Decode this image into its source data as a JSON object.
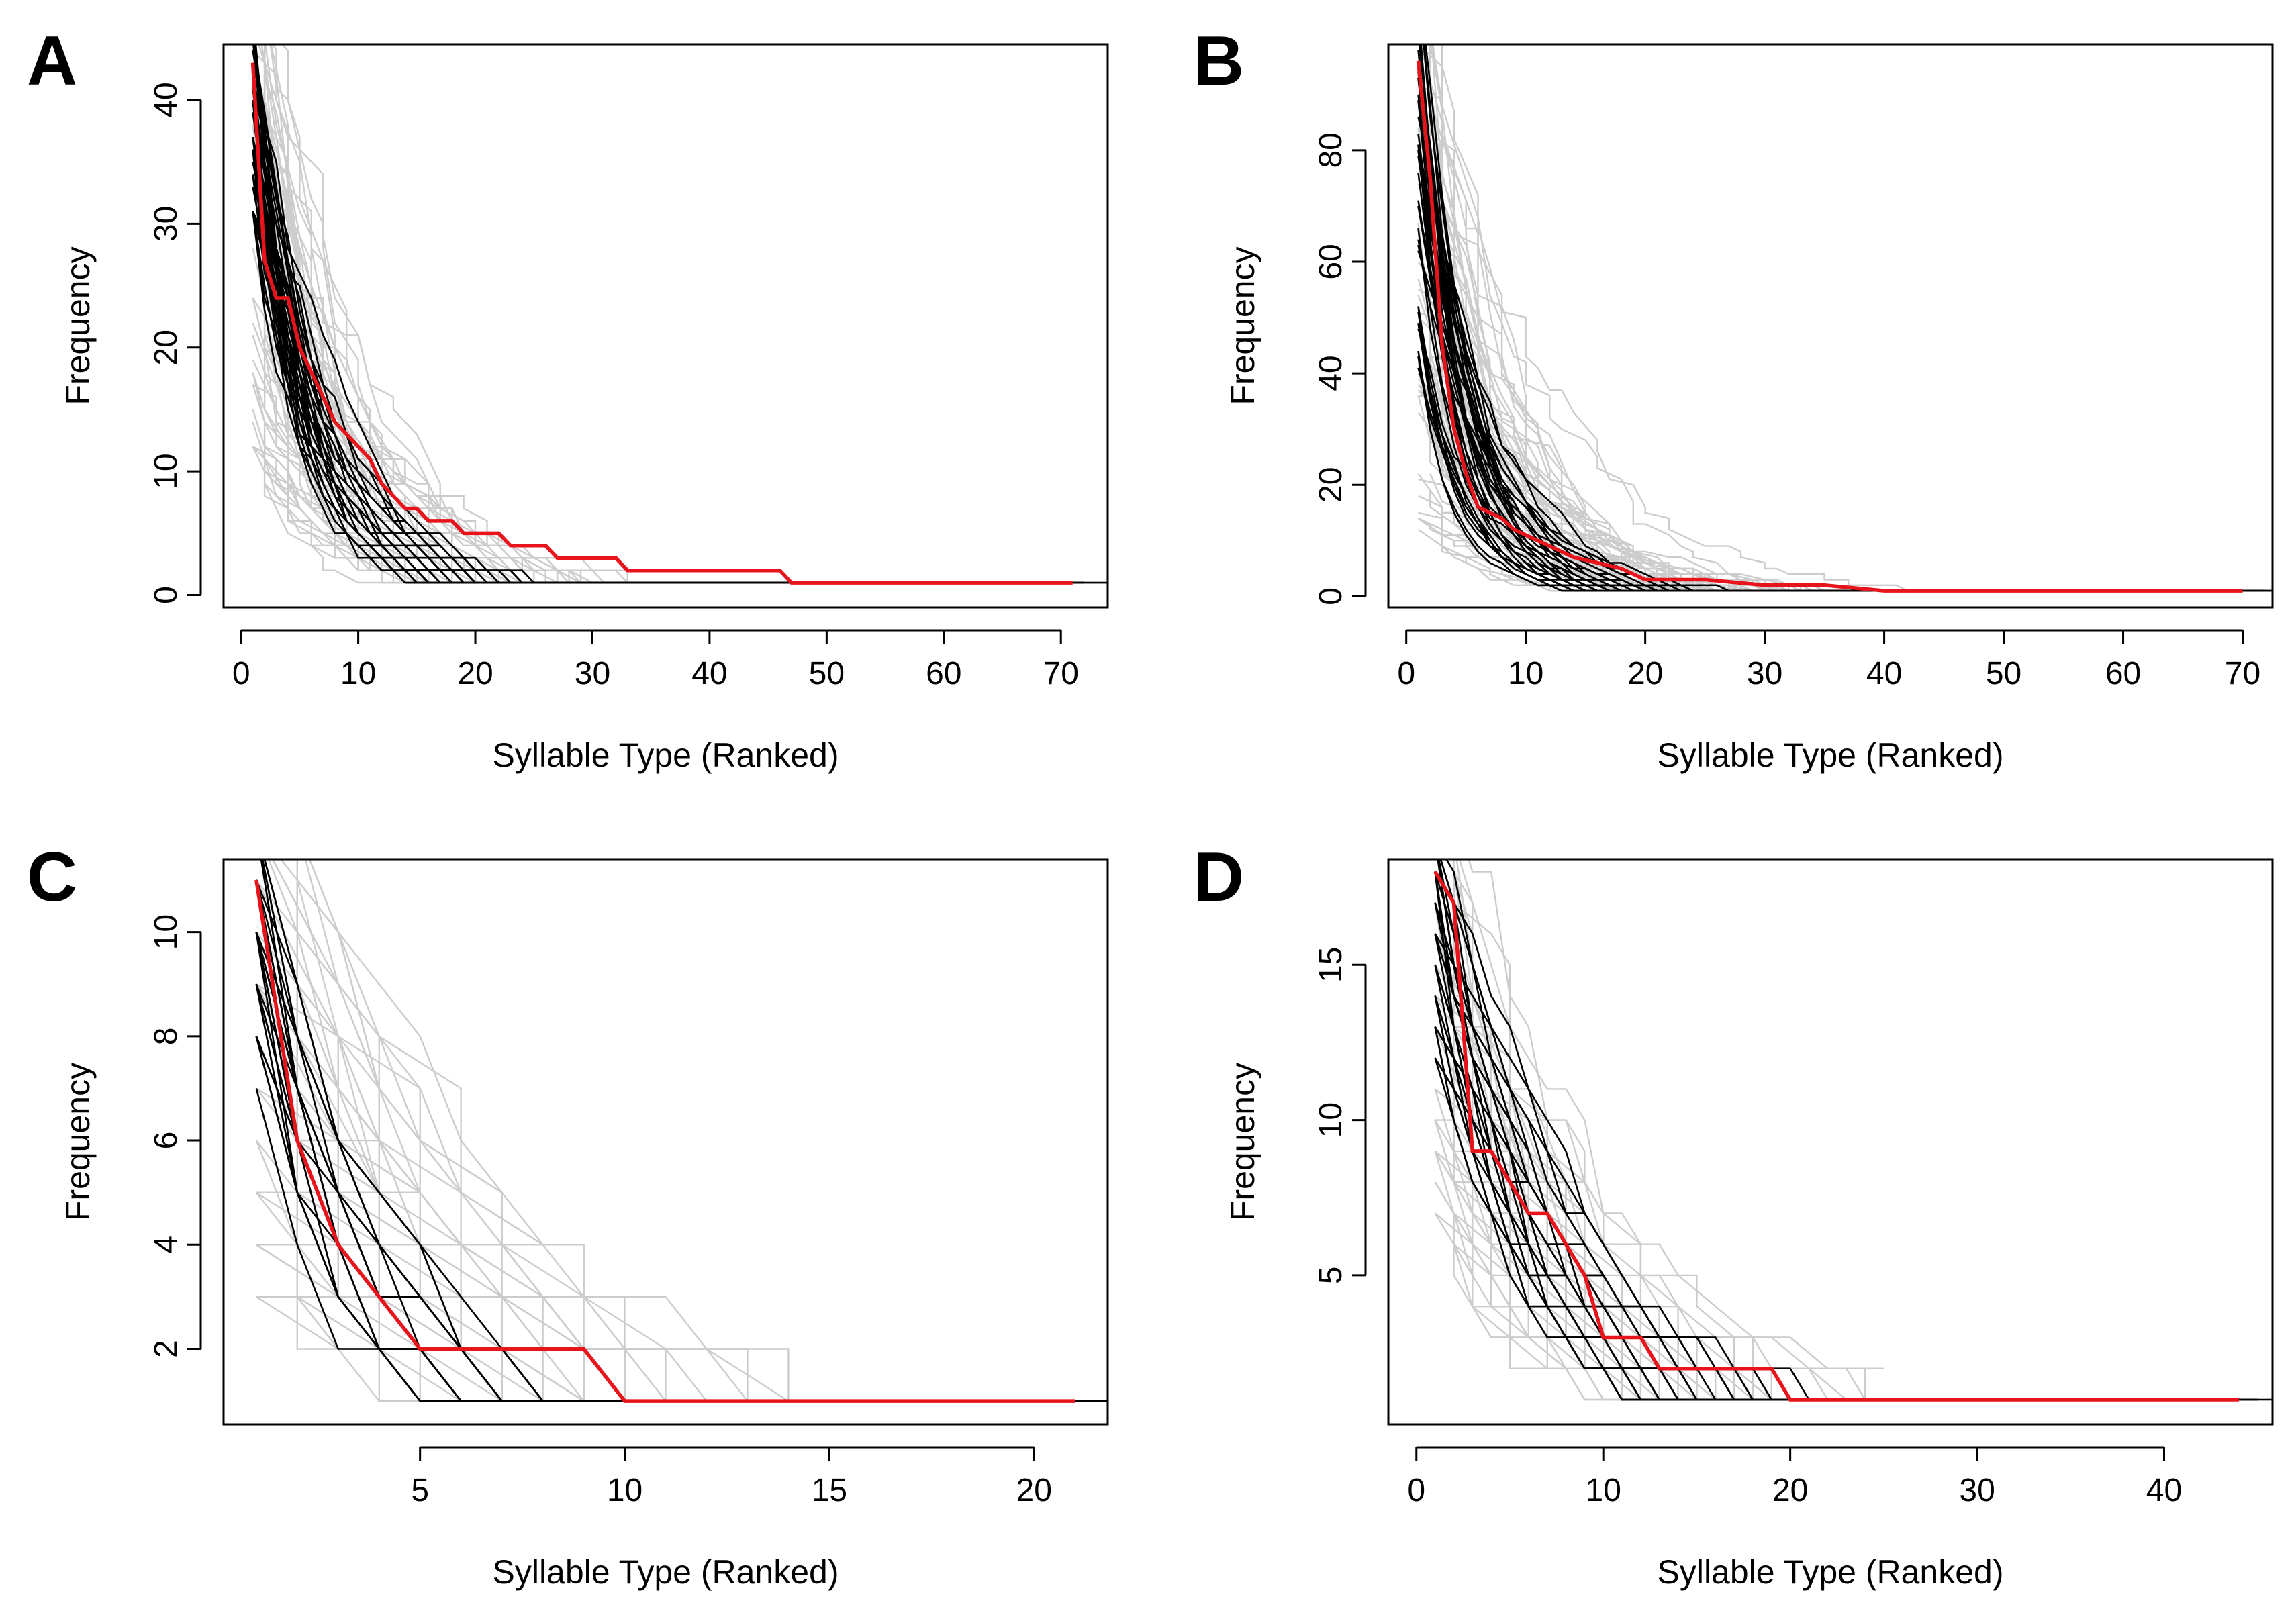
{
  "colors": {
    "simulated_grey": "#cccccc",
    "simulated_black": "#000000",
    "observed": "#e8141c"
  },
  "chart_data": [
    {
      "type": "line",
      "panel_label": "A",
      "xlabel": "Syllable Type (Ranked)",
      "ylabel": "Frequency",
      "xlim": [
        -1.5,
        74
      ],
      "ylim": [
        -1,
        44.5
      ],
      "x_ticks": [
        0,
        10,
        20,
        30,
        40,
        50,
        60,
        70
      ],
      "y_ticks": [
        0,
        10,
        20,
        30,
        40
      ],
      "grid": false,
      "series": [
        {
          "role": "observed",
          "x": [
            1,
            2,
            3,
            4,
            5,
            6,
            7,
            8,
            9,
            10,
            11,
            12,
            13,
            14,
            15,
            16,
            17,
            18,
            19,
            20,
            21,
            22,
            23,
            26,
            27,
            28,
            29,
            30,
            31,
            32,
            33,
            34,
            46,
            47,
            71
          ],
          "y": [
            43,
            27,
            24,
            24,
            20,
            18,
            16,
            14,
            13,
            12,
            11,
            9,
            8,
            7,
            7,
            6,
            6,
            6,
            5,
            5,
            5,
            5,
            4,
            4,
            3,
            3,
            3,
            3,
            3,
            3,
            2,
            2,
            2,
            1,
            1
          ]
        }
      ]
    },
    {
      "type": "line",
      "panel_label": "B",
      "xlabel": "Syllable Type (Ranked)",
      "ylabel": "Frequency",
      "xlim": [
        -1.5,
        72.5
      ],
      "ylim": [
        -2,
        99
      ],
      "x_ticks": [
        0,
        10,
        20,
        30,
        40,
        50,
        60,
        70
      ],
      "y_ticks": [
        0,
        20,
        40,
        60,
        80
      ],
      "grid": false,
      "series": [
        {
          "role": "observed",
          "x": [
            1,
            2,
            3,
            4,
            5,
            6,
            7,
            8,
            9,
            10,
            12,
            14,
            16,
            18,
            20,
            25,
            30,
            35,
            40,
            70
          ],
          "y": [
            96,
            75,
            45,
            30,
            22,
            16,
            15,
            14,
            12,
            11,
            9,
            7,
            6,
            5,
            3,
            3,
            2,
            2,
            1,
            1
          ]
        }
      ]
    },
    {
      "type": "line",
      "panel_label": "C",
      "xlabel": "Syllable Type (Ranked)",
      "ylabel": "Frequency",
      "xlim": [
        0.2,
        21.8
      ],
      "ylim": [
        0.55,
        11.4
      ],
      "x_ticks": [
        5,
        10,
        15,
        20
      ],
      "y_ticks": [
        2,
        4,
        6,
        8,
        10
      ],
      "grid": false,
      "series": [
        {
          "role": "observed",
          "x": [
            1,
            2,
            3,
            4,
            5,
            6,
            7,
            8,
            9,
            10,
            21
          ],
          "y": [
            11,
            6,
            4,
            3,
            2,
            2,
            2,
            2,
            2,
            1,
            1
          ]
        }
      ]
    },
    {
      "type": "line",
      "panel_label": "D",
      "xlabel": "Syllable Type (Ranked)",
      "ylabel": "Frequency",
      "xlim": [
        -1.5,
        45.8
      ],
      "ylim": [
        0.2,
        18.4
      ],
      "x_ticks": [
        0,
        10,
        20,
        30,
        40
      ],
      "y_ticks": [
        5,
        10,
        15
      ],
      "grid": false,
      "series": [
        {
          "role": "observed",
          "x": [
            1,
            2,
            3,
            4,
            5,
            6,
            7,
            8,
            9,
            10,
            11,
            12,
            13,
            14,
            15,
            16,
            17,
            18,
            19,
            20,
            44
          ],
          "y": [
            18,
            17,
            9,
            9,
            8,
            7,
            7,
            6,
            5,
            3,
            3,
            3,
            2,
            2,
            2,
            2,
            2,
            2,
            2,
            1,
            1
          ]
        }
      ]
    }
  ]
}
